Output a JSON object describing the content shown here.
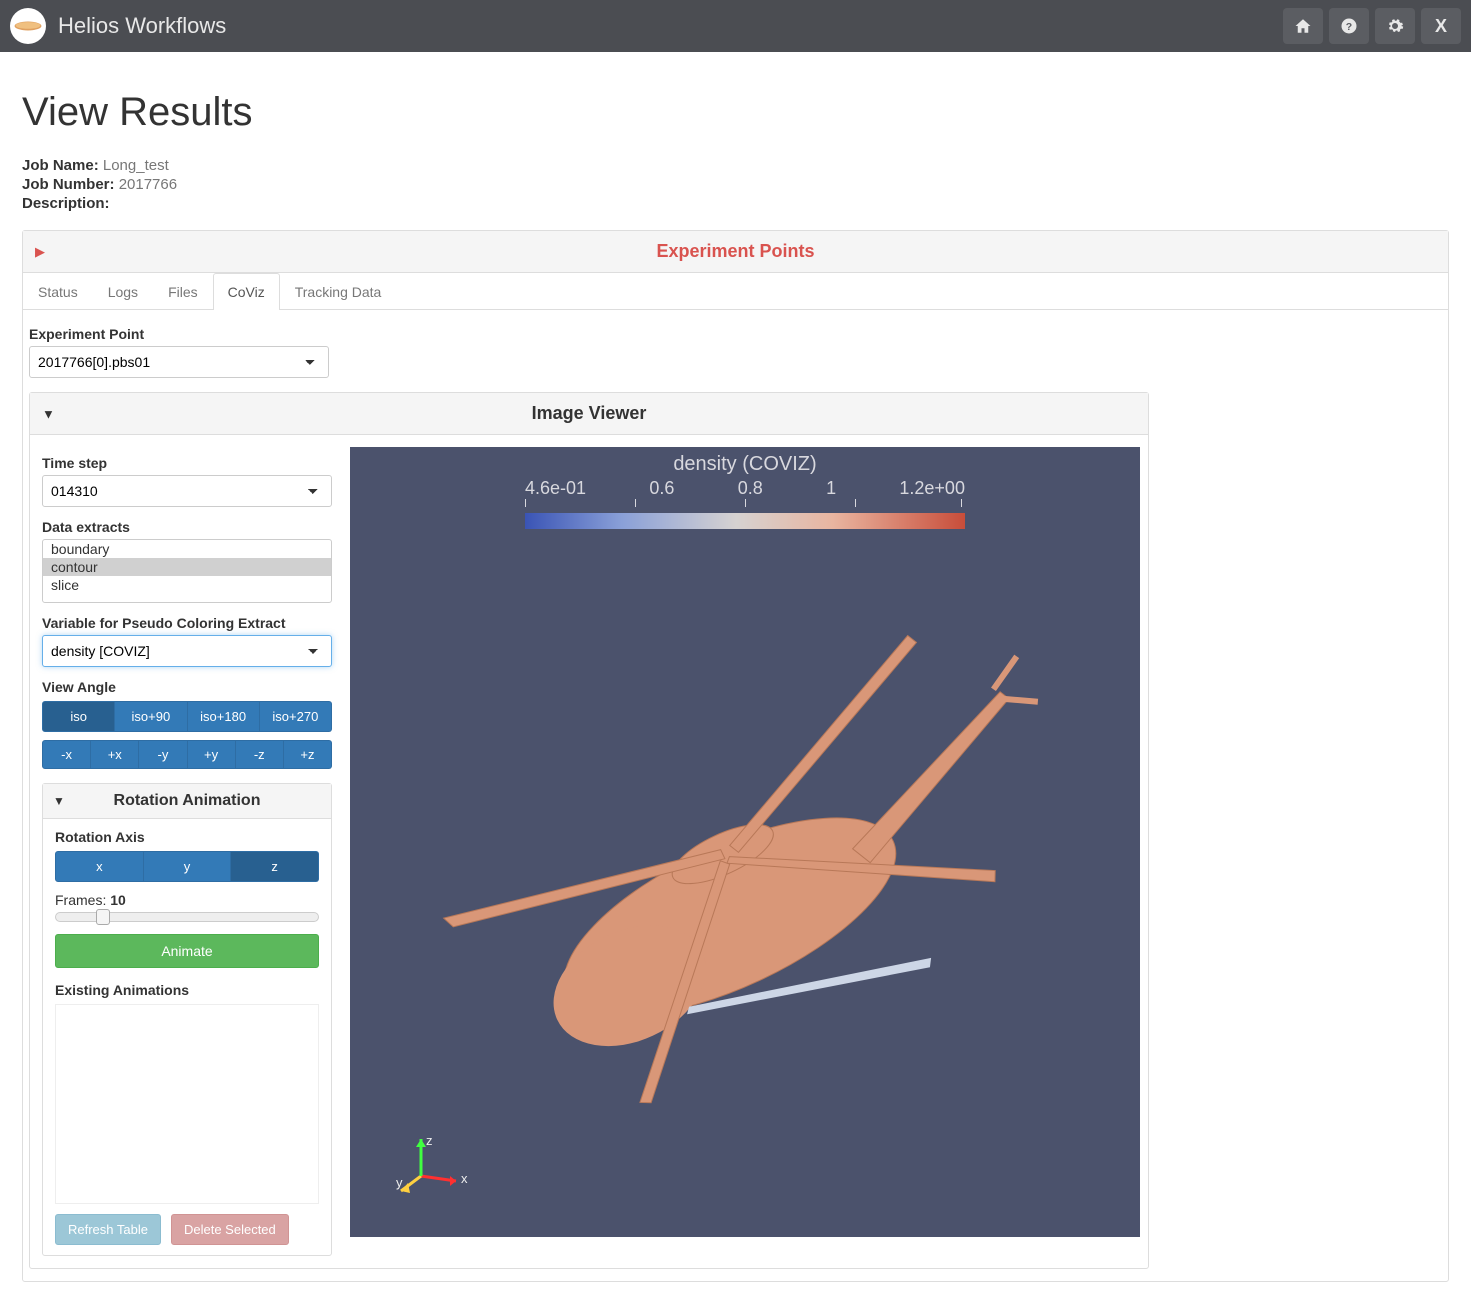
{
  "navbar": {
    "brand": "Helios Workflows",
    "icons": [
      "home",
      "help",
      "gear",
      "close"
    ]
  },
  "page": {
    "title": "View Results",
    "job_name_label": "Job Name:",
    "job_name": "Long_test",
    "job_number_label": "Job Number:",
    "job_number": "2017766",
    "description_label": "Description:",
    "description": ""
  },
  "exp_panel": {
    "title": "Experiment Points",
    "tabs": [
      "Status",
      "Logs",
      "Files",
      "CoViz",
      "Tracking Data"
    ],
    "active_tab_index": 3,
    "exp_point_label": "Experiment Point",
    "exp_point_value": "2017766[0].pbs01"
  },
  "viewer": {
    "title": "Image Viewer",
    "time_step_label": "Time step",
    "time_step_value": "014310",
    "data_extracts_label": "Data extracts",
    "data_extracts": [
      "boundary",
      "contour",
      "slice"
    ],
    "data_extracts_selected_index": 1,
    "pseudo_label": "Variable for Pseudo Coloring Extract",
    "pseudo_value": "density [COVIZ]",
    "view_angle_label": "View Angle",
    "view_angle_row1": [
      "iso",
      "iso+90",
      "iso+180",
      "iso+270"
    ],
    "view_angle_row1_active": 0,
    "view_angle_row2": [
      "-x",
      "+x",
      "-y",
      "+y",
      "-z",
      "+z"
    ],
    "legend": {
      "title": "density (COVIZ)",
      "ticks": [
        "4.6e-01",
        "0.6",
        "0.8",
        "1",
        "1.2e+00"
      ],
      "gradient_stops": [
        "#3a54b5",
        "#8aa0d8",
        "#d6d2d1",
        "#e9b5a0",
        "#c84d3a"
      ]
    },
    "canvas_bg": "#4b526c",
    "model_color": "#d99778",
    "axis": {
      "x_color": "#ff3030",
      "y_color": "#ffd040",
      "z_color": "#40ff40"
    }
  },
  "rotation": {
    "title": "Rotation Animation",
    "axis_label": "Rotation Axis",
    "axes": [
      "x",
      "y",
      "z"
    ],
    "active_axis_index": 2,
    "frames_label": "Frames:",
    "frames_value": "10",
    "animate_label": "Animate",
    "existing_label": "Existing Animations",
    "refresh_label": "Refresh Table",
    "delete_label": "Delete Selected"
  }
}
